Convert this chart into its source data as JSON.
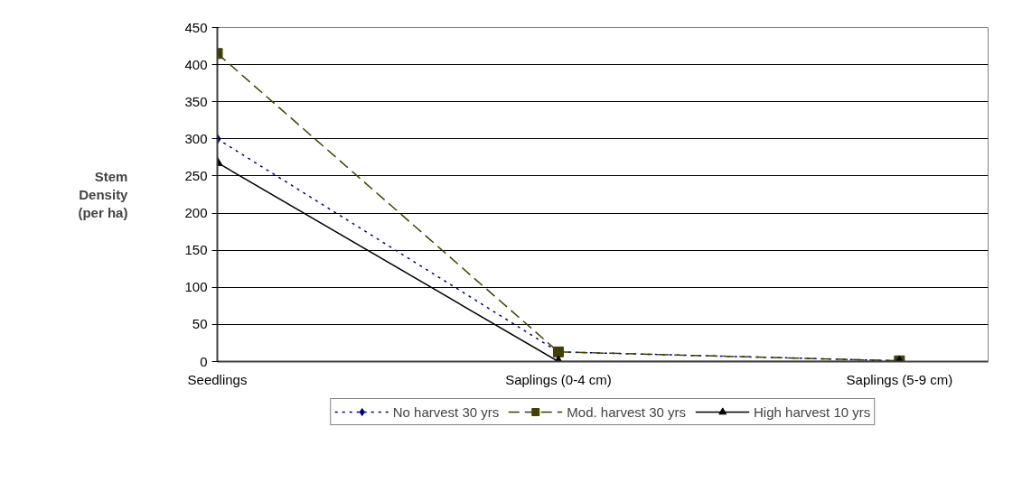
{
  "chart_data": {
    "type": "line",
    "ylabel": "Stem Density (per ha)",
    "categories": [
      "Seedlings",
      "Saplings (0-4 cm)",
      "Saplings (5-9 cm)"
    ],
    "series": [
      {
        "name": "No harvest 30 yrs",
        "color": "#000080",
        "values": [
          300,
          13,
          1
        ],
        "marker": "diamond",
        "line_style": "dotted"
      },
      {
        "name": "Mod. harvest 30 yrs",
        "color": "#404000",
        "values": [
          415,
          13,
          1
        ],
        "marker": "square",
        "line_style": "dashed"
      },
      {
        "name": "High harvest 10 yrs",
        "color": "#000000",
        "values": [
          268,
          0,
          0
        ],
        "marker": "triangle",
        "line_style": "solid"
      }
    ],
    "ylim": [
      0,
      450
    ],
    "yticks": [
      0,
      50,
      100,
      150,
      200,
      250,
      300,
      350,
      400,
      450
    ],
    "grid": "y",
    "legend": "bottom"
  }
}
